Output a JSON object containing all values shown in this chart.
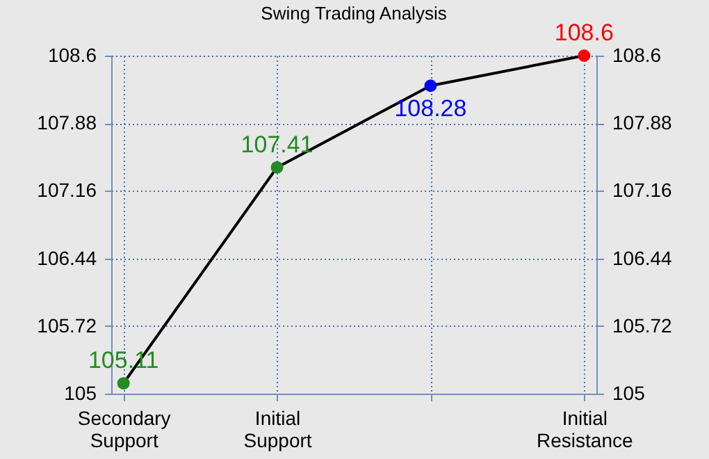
{
  "chart_data": {
    "type": "line",
    "title": "Swing Trading Analysis",
    "categories": [
      "Secondary Support",
      "Initial Support",
      null,
      "Initial Resistance"
    ],
    "series": [
      {
        "color": "#000000",
        "values": [
          105.11,
          107.41,
          108.28,
          108.6
        ],
        "colors": [
          "#228b22",
          "#228b22",
          "#0000ff",
          "#ff0000"
        ]
      }
    ],
    "data_labels": true,
    "marker": "circle",
    "ylim": [
      105,
      108.6
    ],
    "yticks": [
      105,
      105.72,
      106.44,
      107.16,
      107.88,
      108.6
    ],
    "y2lim": [
      105,
      108.6
    ],
    "y2ticks": [
      105,
      105.72,
      106.44,
      107.16,
      107.88,
      108.6
    ],
    "grid": true
  }
}
